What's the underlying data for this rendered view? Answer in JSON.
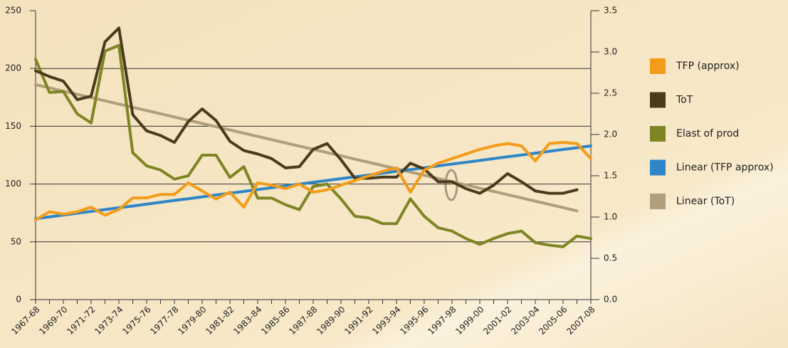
{
  "chart_data": {
    "type": "line",
    "categories": [
      "1967-68",
      null,
      "1969-70",
      null,
      "1971-72",
      null,
      "1973-74",
      null,
      "1975-76",
      null,
      "1977-78",
      null,
      "1979-80",
      null,
      "1981-82",
      null,
      "1983-84",
      null,
      "1985-86",
      null,
      "1987-88",
      null,
      "1989-90",
      null,
      "1991-92",
      null,
      "1993-94",
      null,
      "1995-96",
      null,
      "1997-98",
      null,
      "1999-00",
      null,
      "2001-02",
      null,
      "2003-04",
      null,
      "2005-06",
      null,
      "2007-08"
    ],
    "ylim": [
      0,
      250
    ],
    "yticks": [
      0,
      50,
      100,
      150,
      200,
      250
    ],
    "y2lim": [
      0,
      3.5
    ],
    "y2ticks": [
      {
        "value": 0,
        "label": "0.0"
      },
      0.5,
      {
        "value": 1,
        "label": "1.0"
      },
      1.5,
      {
        "value": 2,
        "label": "2.0"
      },
      2.5,
      {
        "value": 3,
        "label": "3.0"
      },
      3.5
    ],
    "grid": true,
    "legend": "right",
    "series": [
      {
        "name": "TFP (approx)",
        "color": "#f39c1a",
        "values": [
          69,
          76,
          74,
          76,
          80,
          73,
          78,
          88,
          88,
          91,
          91,
          101,
          94,
          87,
          93,
          80,
          101,
          99,
          96,
          100,
          93,
          95,
          99,
          103,
          107,
          111,
          114,
          93,
          112,
          118,
          122,
          126,
          130,
          133,
          135,
          133,
          120,
          135,
          136,
          135,
          122
        ]
      },
      {
        "name": "ToT",
        "color": "#4a3b1c",
        "values": [
          198,
          193,
          189,
          173,
          176,
          223,
          235,
          160,
          146,
          142,
          136,
          154,
          165,
          155,
          137,
          129,
          126,
          122,
          114,
          115,
          130,
          135,
          121,
          105,
          105,
          106,
          106,
          118,
          113,
          102,
          102,
          96,
          92,
          99,
          109,
          102,
          94,
          92,
          92,
          95,
          null
        ]
      },
      {
        "name": "Elast of prod",
        "color": "#7d8524",
        "axis": "y2",
        "values": [
          2.91,
          2.51,
          2.52,
          2.25,
          2.14,
          3.01,
          3.08,
          1.78,
          1.62,
          1.57,
          1.46,
          1.5,
          1.75,
          1.75,
          1.48,
          1.61,
          1.23,
          1.23,
          1.15,
          1.09,
          1.37,
          1.4,
          1.22,
          1.01,
          0.99,
          0.92,
          0.92,
          1.22,
          1.01,
          0.87,
          0.83,
          0.74,
          0.67,
          0.74,
          0.8,
          0.83,
          0.69,
          0.66,
          0.64,
          0.77,
          0.74
        ]
      },
      {
        "name": "Linear (TFP approx)",
        "color": "#2e86c8",
        "values": [
          70,
          71.6,
          73.2,
          74.7,
          76.3,
          77.9,
          79.5,
          81.0,
          82.6,
          84.2,
          85.8,
          87.3,
          88.9,
          90.5,
          92.1,
          93.6,
          95.2,
          96.8,
          98.4,
          99.9,
          101.5,
          103.1,
          104.7,
          106.2,
          107.8,
          109.4,
          111.0,
          112.5,
          114.1,
          115.7,
          117.3,
          118.8,
          120.4,
          122.0,
          123.6,
          125.1,
          126.7,
          128.3,
          129.9,
          131.4,
          133
        ]
      },
      {
        "name": "Linear (ToT)",
        "color": "#b09e7c",
        "values": [
          186,
          183.2,
          180.4,
          177.6,
          174.8,
          172,
          169.2,
          166.4,
          163.6,
          160.8,
          158,
          155.2,
          152.4,
          149.6,
          146.8,
          144,
          141.2,
          138.4,
          135.6,
          132.8,
          130,
          127.2,
          124.4,
          121.6,
          118.8,
          116,
          113.2,
          110.4,
          107.6,
          104.8,
          102,
          99.2,
          96.4,
          93.6,
          90.8,
          88,
          85.2,
          82.4,
          79.6,
          76.8,
          null
        ]
      }
    ]
  }
}
